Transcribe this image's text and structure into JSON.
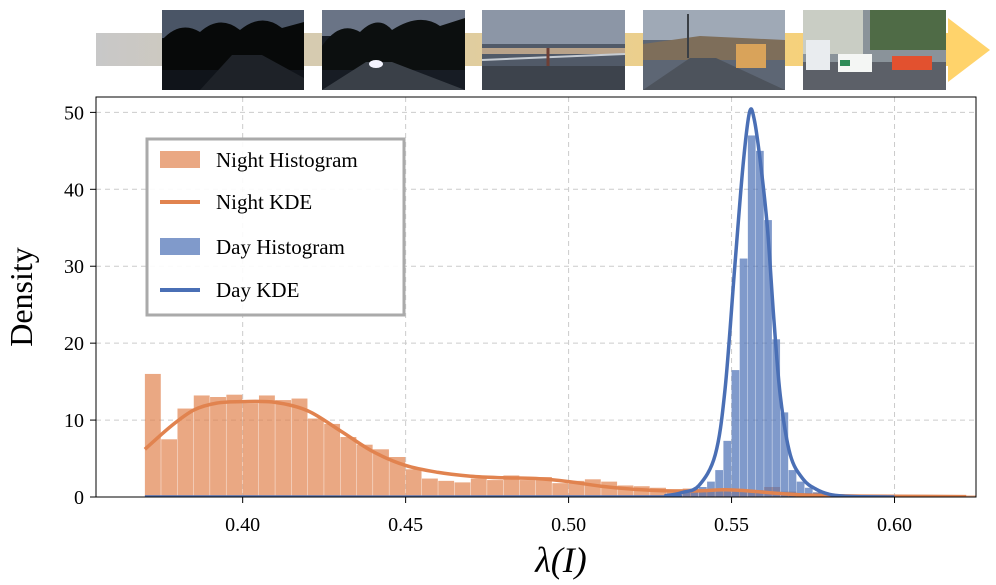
{
  "chart_data": {
    "type": "histogram",
    "title": "",
    "xlabel": "λ(I)",
    "ylabel": "Density",
    "xlim": [
      0.355,
      0.625
    ],
    "ylim": [
      0,
      52
    ],
    "xticks": [
      "0.40",
      "0.45",
      "0.50",
      "0.55",
      "0.60"
    ],
    "xtick_values": [
      0.4,
      0.45,
      0.5,
      0.55,
      0.6
    ],
    "yticks": [
      "0",
      "10",
      "20",
      "30",
      "40",
      "50"
    ],
    "ytick_values": [
      0,
      10,
      20,
      30,
      40,
      50
    ],
    "grid": true,
    "legend_position": "top-left",
    "colors": {
      "night": "#E1834F",
      "day": "#4A6FB5",
      "arrow": "#FFD36B",
      "arrow_start": "#C8C8C8",
      "grid": "#CCCCCC",
      "legend_border": "#AAAAAA"
    },
    "legend": [
      {
        "label": "Night Histogram",
        "kind": "patch",
        "series": "night"
      },
      {
        "label": "Night KDE",
        "kind": "line",
        "series": "night"
      },
      {
        "label": "Day Histogram",
        "kind": "patch",
        "series": "day"
      },
      {
        "label": "Day KDE",
        "kind": "line",
        "series": "day"
      }
    ],
    "series": [
      {
        "name": "Night",
        "bin_start": 0.37,
        "bin_width": 0.005,
        "values": [
          16,
          7.5,
          11.5,
          13.2,
          13,
          13.3,
          12.2,
          13.2,
          12.6,
          12.8,
          10.2,
          9.5,
          7.8,
          6.8,
          6.2,
          5.2,
          3.6,
          2.4,
          2.1,
          1.9,
          2.4,
          2.2,
          2.8,
          2.2,
          2.6,
          1.8,
          2.1,
          2.3,
          2.0,
          1.5,
          1.4,
          1.2,
          1.0,
          1.1,
          0.8,
          0.7,
          0.7,
          0.9,
          1.3,
          0.7,
          0.5,
          0.6,
          0.3,
          0.2,
          0.2,
          0.2,
          0.2,
          0.1,
          0.1,
          0.1,
          0.2
        ],
        "kde": {
          "x": [
            0.37,
            0.378,
            0.385,
            0.392,
            0.4,
            0.41,
            0.42,
            0.43,
            0.44,
            0.45,
            0.46,
            0.47,
            0.48,
            0.49,
            0.5,
            0.51,
            0.52,
            0.53,
            0.54,
            0.548,
            0.555,
            0.565,
            0.575,
            0.59,
            0.61,
            0.622
          ],
          "y": [
            6.2,
            9.2,
            11.3,
            12.2,
            12.4,
            12.3,
            11.2,
            8.6,
            5.9,
            4.1,
            3.2,
            2.7,
            2.5,
            2.4,
            2.0,
            1.4,
            1.0,
            0.8,
            0.8,
            0.95,
            0.8,
            0.45,
            0.22,
            0.12,
            0.08,
            0.05
          ]
        }
      },
      {
        "name": "Day",
        "bin_start": 0.5325,
        "bin_width": 0.0025,
        "values": [
          0.3,
          0.7,
          1.0,
          1.3,
          2.0,
          3.5,
          7.3,
          16.5,
          31.0,
          47.0,
          45.0,
          36.0,
          20.5,
          11.0,
          3.5,
          2.0,
          1.2,
          0.6,
          0.3,
          0.3,
          0.3,
          0.2,
          0.2
        ],
        "kde": {
          "x": [
            0.37,
            0.52,
            0.53,
            0.535,
            0.54,
            0.545,
            0.548,
            0.551,
            0.5535,
            0.5555,
            0.557,
            0.559,
            0.561,
            0.563,
            0.565,
            0.568,
            0.572,
            0.576,
            0.58,
            0.585,
            0.59,
            0.6
          ],
          "y": [
            0,
            0,
            0.2,
            0.6,
            1.5,
            5.5,
            14.0,
            30.0,
            43.0,
            50.0,
            49.0,
            43.0,
            35.0,
            23.0,
            13.0,
            5.5,
            2.3,
            1.0,
            0.35,
            0.1,
            0.03,
            0
          ]
        }
      }
    ]
  }
}
